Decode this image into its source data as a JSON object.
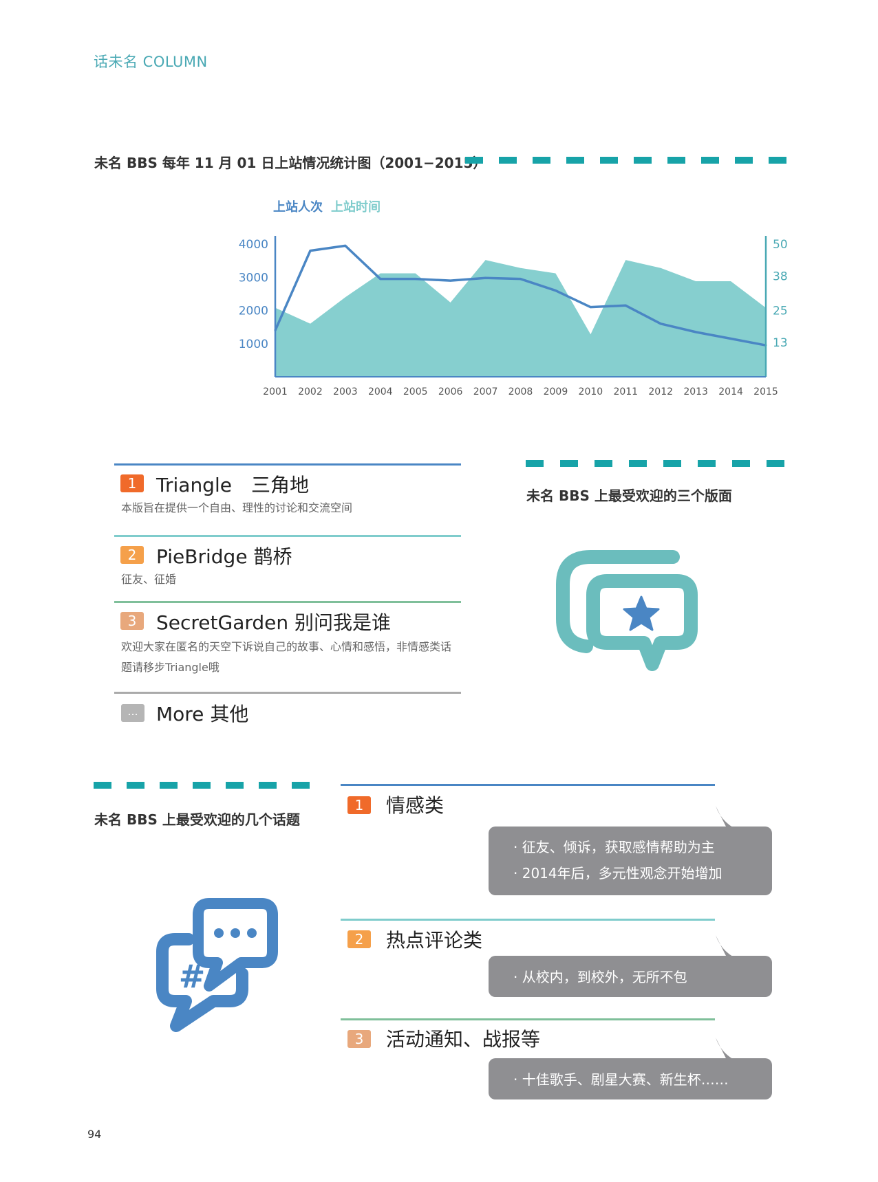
{
  "header": {
    "column_label": "话未名 COLUMN"
  },
  "chart_section": {
    "title": "未名 BBS 每年 11 月 01 日上站情况统计图（2001−2015）"
  },
  "chart_data": {
    "type": "line",
    "title": "",
    "legend": [
      "上站人次",
      "上站时间"
    ],
    "colors": {
      "visits": "#4a86c4",
      "time": "#7fcccc",
      "axis_left": "#4a86c4",
      "axis_right": "#4aa9b4"
    },
    "x": [
      "2001",
      "2002",
      "2003",
      "2004",
      "2005",
      "2006",
      "2007",
      "2008",
      "2009",
      "2010",
      "2011",
      "2012",
      "2013",
      "2014",
      "2015"
    ],
    "y_left_ticks": [
      "4000",
      "3000",
      "2000",
      "1000"
    ],
    "y_right_ticks": [
      "50",
      "38",
      "25",
      "13"
    ],
    "ylim_left": [
      0,
      4000
    ],
    "ylim_right": [
      0,
      50
    ],
    "series": [
      {
        "name": "上站人次",
        "type": "line",
        "axis": "left",
        "values": [
          1400,
          3800,
          3950,
          2950,
          2950,
          2900,
          2980,
          2950,
          2600,
          2100,
          2150,
          1600,
          1350,
          1150,
          950
        ]
      },
      {
        "name": "上站时间",
        "type": "area",
        "axis": "right",
        "values": [
          26,
          20,
          30,
          39,
          39,
          28,
          44,
          41,
          39,
          16,
          44,
          41,
          36,
          36,
          26
        ]
      }
    ]
  },
  "boards_section": {
    "title": "未名 BBS 上最受欢迎的三个版面",
    "items": [
      {
        "num": "1",
        "name": "Triangle　三角地",
        "desc": "本版旨在提供一个自由、理性的讨论和交流空间"
      },
      {
        "num": "2",
        "name": "PieBridge  鹊桥",
        "desc": "征友、征婚"
      },
      {
        "num": "3",
        "name": "SecretGarden  别问我是谁",
        "desc": "欢迎大家在匿名的天空下诉说自己的故事、心情和感悟，非情感类话题请移步Triangle哦"
      }
    ],
    "more": {
      "badge": "...",
      "name": "More  其他"
    }
  },
  "topics_section": {
    "title": "未名 BBS 上最受欢迎的几个话题",
    "items": [
      {
        "num": "1",
        "name": "情感类",
        "points": [
          "· 征友、倾诉，获取感情帮助为主",
          "· 2014年后，多元性观念开始增加"
        ]
      },
      {
        "num": "2",
        "name": "热点评论类",
        "points": [
          "· 从校内，到校外，无所不包"
        ]
      },
      {
        "num": "3",
        "name": "活动通知、战报等",
        "points": [
          "· 十佳歌手、剧星大赛、新生杯……"
        ]
      }
    ]
  },
  "page": {
    "number": "94"
  },
  "colors": {
    "teal": "#17a3a8",
    "blue": "#4a86c4",
    "orange1": "#f06a2a",
    "orange2": "#f5a04a",
    "orange3": "#e8a87c",
    "gray_bubble": "#8f8f92"
  }
}
